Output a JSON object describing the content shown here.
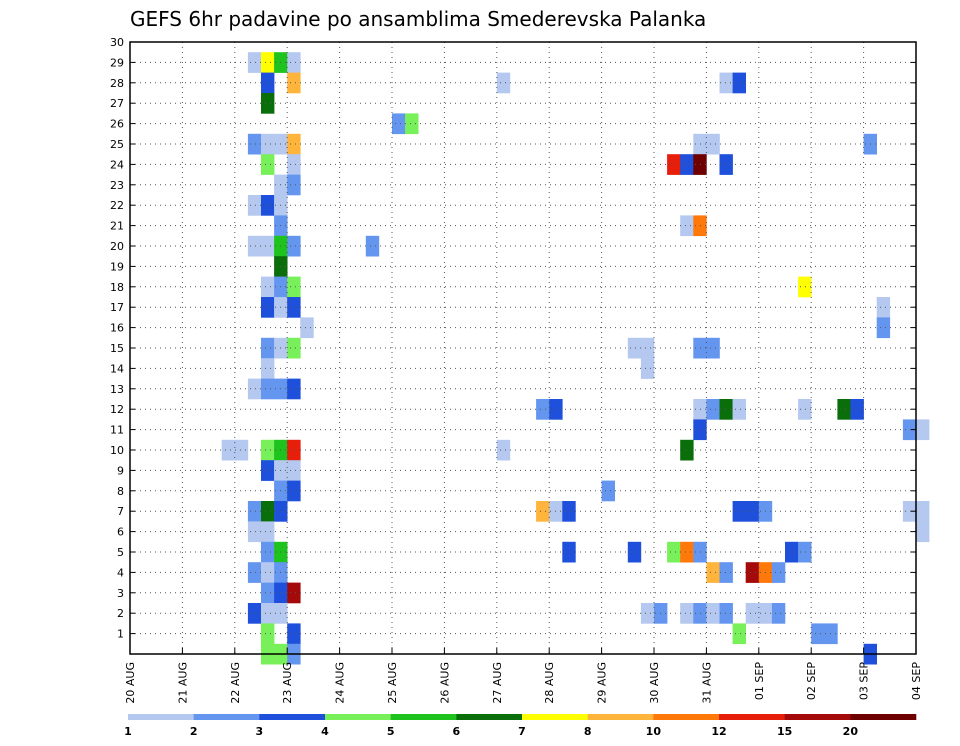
{
  "chart_data": {
    "type": "heatmap",
    "title": "GEFS 6hr padavine po ansamblima Smederevska Palanka",
    "xlabel": "",
    "ylabel": "",
    "x_tick_labels": [
      "20 AUG",
      "21 AUG",
      "22 AUG",
      "23 AUG",
      "24 AUG",
      "25 AUG",
      "26 AUG",
      "27 AUG",
      "28 AUG",
      "29 AUG",
      "30 AUG",
      "31 AUG",
      "01 SEP",
      "02 SEP",
      "03 SEP",
      "04 SEP"
    ],
    "y_tick_labels": [
      "1",
      "2",
      "3",
      "4",
      "5",
      "6",
      "7",
      "8",
      "9",
      "10",
      "11",
      "12",
      "13",
      "14",
      "15",
      "16",
      "17",
      "18",
      "19",
      "20",
      "21",
      "22",
      "23",
      "24",
      "25",
      "26",
      "27",
      "28",
      "29",
      "30"
    ],
    "x_range_days": [
      0,
      15
    ],
    "y_range_members": [
      0,
      30
    ],
    "step_hours": 6,
    "grid": true,
    "legend_position": "bottom",
    "color_scale": {
      "boundaries": [
        "1",
        "2",
        "3",
        "4",
        "5",
        "6",
        "7",
        "8",
        "10",
        "12",
        "15",
        "20"
      ],
      "colors": [
        "#b4c8f0",
        "#6496f0",
        "#1e50dc",
        "#78f05a",
        "#1ec31e",
        "#0a6e0a",
        "#ffff00",
        "#ffb43c",
        "#ff780a",
        "#e61e0a",
        "#a50a0a",
        "#6e0000"
      ]
    },
    "cells": [
      [
        30,
        8,
        0
      ],
      [
        30,
        9,
        6
      ],
      [
        30,
        10,
        4
      ],
      [
        30,
        11,
        0
      ],
      [
        29,
        9,
        2
      ],
      [
        29,
        11,
        7
      ],
      [
        29,
        27,
        0
      ],
      [
        29,
        44,
        0
      ],
      [
        29,
        45,
        2
      ],
      [
        28,
        9,
        5
      ],
      [
        27,
        19,
        1
      ],
      [
        27,
        20,
        3
      ],
      [
        26,
        8,
        1
      ],
      [
        26,
        9,
        0
      ],
      [
        26,
        10,
        0
      ],
      [
        26,
        11,
        7
      ],
      [
        26,
        42,
        0
      ],
      [
        26,
        43,
        0
      ],
      [
        26,
        55,
        1
      ],
      [
        25,
        9,
        3
      ],
      [
        25,
        11,
        0
      ],
      [
        25,
        40,
        9
      ],
      [
        25,
        41,
        2
      ],
      [
        25,
        42,
        11
      ],
      [
        25,
        44,
        2
      ],
      [
        24,
        10,
        0
      ],
      [
        24,
        11,
        1
      ],
      [
        23,
        8,
        0
      ],
      [
        23,
        9,
        2
      ],
      [
        23,
        10,
        0
      ],
      [
        22,
        10,
        1
      ],
      [
        22,
        41,
        0
      ],
      [
        22,
        42,
        8
      ],
      [
        21,
        8,
        0
      ],
      [
        21,
        9,
        0
      ],
      [
        21,
        10,
        4
      ],
      [
        21,
        11,
        1
      ],
      [
        21,
        17,
        1
      ],
      [
        20,
        10,
        5
      ],
      [
        19,
        9,
        0
      ],
      [
        19,
        10,
        1
      ],
      [
        19,
        11,
        3
      ],
      [
        19,
        50,
        6
      ],
      [
        18,
        9,
        2
      ],
      [
        18,
        10,
        0
      ],
      [
        18,
        11,
        2
      ],
      [
        18,
        56,
        0
      ],
      [
        17,
        12,
        0
      ],
      [
        17,
        56,
        1
      ],
      [
        16,
        9,
        1
      ],
      [
        16,
        10,
        0
      ],
      [
        16,
        11,
        3
      ],
      [
        16,
        37,
        0
      ],
      [
        16,
        38,
        0
      ],
      [
        16,
        42,
        1
      ],
      [
        16,
        43,
        1
      ],
      [
        15,
        9,
        0
      ],
      [
        15,
        38,
        0
      ],
      [
        14,
        8,
        0
      ],
      [
        14,
        9,
        1
      ],
      [
        14,
        10,
        1
      ],
      [
        14,
        11,
        2
      ],
      [
        13,
        30,
        1
      ],
      [
        13,
        31,
        2
      ],
      [
        13,
        42,
        0
      ],
      [
        13,
        43,
        1
      ],
      [
        13,
        44,
        5
      ],
      [
        13,
        45,
        0
      ],
      [
        13,
        50,
        0
      ],
      [
        13,
        53,
        5
      ],
      [
        13,
        54,
        2
      ],
      [
        12,
        42,
        2
      ],
      [
        12,
        58,
        1
      ],
      [
        12,
        59,
        0
      ],
      [
        11,
        6,
        0
      ],
      [
        11,
        7,
        0
      ],
      [
        11,
        9,
        3
      ],
      [
        11,
        10,
        4
      ],
      [
        11,
        11,
        9
      ],
      [
        11,
        27,
        0
      ],
      [
        11,
        41,
        5
      ],
      [
        10,
        9,
        2
      ],
      [
        10,
        10,
        0
      ],
      [
        10,
        11,
        0
      ],
      [
        9,
        10,
        1
      ],
      [
        9,
        11,
        2
      ],
      [
        9,
        35,
        1
      ],
      [
        8,
        8,
        1
      ],
      [
        8,
        9,
        5
      ],
      [
        8,
        10,
        2
      ],
      [
        8,
        30,
        7
      ],
      [
        8,
        31,
        0
      ],
      [
        8,
        32,
        2
      ],
      [
        8,
        45,
        2
      ],
      [
        8,
        46,
        2
      ],
      [
        8,
        47,
        1
      ],
      [
        8,
        58,
        0
      ],
      [
        8,
        59,
        0
      ],
      [
        7,
        8,
        0
      ],
      [
        7,
        9,
        0
      ],
      [
        7,
        59,
        0
      ],
      [
        6,
        9,
        1
      ],
      [
        6,
        10,
        4
      ],
      [
        6,
        32,
        2
      ],
      [
        6,
        37,
        2
      ],
      [
        6,
        40,
        3
      ],
      [
        6,
        41,
        8
      ],
      [
        6,
        42,
        1
      ],
      [
        6,
        49,
        2
      ],
      [
        6,
        50,
        1
      ],
      [
        5,
        8,
        1
      ],
      [
        5,
        9,
        0
      ],
      [
        5,
        10,
        1
      ],
      [
        5,
        43,
        7
      ],
      [
        5,
        44,
        1
      ],
      [
        5,
        46,
        10
      ],
      [
        5,
        47,
        8
      ],
      [
        5,
        48,
        1
      ],
      [
        4,
        9,
        1
      ],
      [
        4,
        10,
        2
      ],
      [
        4,
        11,
        10
      ],
      [
        3,
        8,
        2
      ],
      [
        3,
        9,
        0
      ],
      [
        3,
        10,
        0
      ],
      [
        3,
        38,
        0
      ],
      [
        3,
        39,
        1
      ],
      [
        3,
        41,
        0
      ],
      [
        3,
        42,
        1
      ],
      [
        3,
        43,
        0
      ],
      [
        3,
        44,
        1
      ],
      [
        3,
        46,
        0
      ],
      [
        3,
        47,
        0
      ],
      [
        3,
        48,
        1
      ],
      [
        2,
        9,
        3
      ],
      [
        2,
        11,
        2
      ],
      [
        2,
        45,
        3
      ],
      [
        2,
        51,
        1
      ],
      [
        2,
        52,
        1
      ],
      [
        1,
        9,
        3
      ],
      [
        1,
        10,
        3
      ],
      [
        1,
        11,
        1
      ],
      [
        1,
        55,
        2
      ]
    ]
  }
}
